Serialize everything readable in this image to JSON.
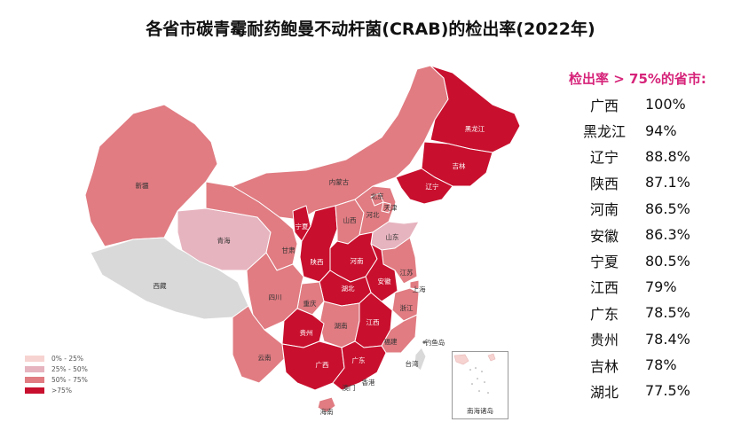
{
  "title": "各省市碳青霉耐药鲍曼不动杆菌(CRAB)的检出率(2022年)",
  "colors": {
    "c0": "#f6d3d0",
    "c1": "#e6b4bf",
    "c2": "#e07c82",
    "c3": "#c8102e",
    "grey": "#d9d9d9",
    "accent": "#d6247a"
  },
  "legend": [
    {
      "label": "0% - 25%",
      "color": "#f6d3d0"
    },
    {
      "label": "25% - 50%",
      "color": "#e6b4bf"
    },
    {
      "label": "50% - 75%",
      "color": "#e07c82"
    },
    {
      "label": ">75%",
      "color": "#c8102e"
    }
  ],
  "map_labels": {
    "heilongjiang": "黑龙江",
    "jilin": "吉林",
    "liaoning": "辽宁",
    "neimenggu": "内蒙古",
    "xinjiang": "新疆",
    "xizang": "西藏",
    "qinghai": "青海",
    "gansu": "甘肃",
    "ningxia": "宁夏",
    "shaanxi": "陕西",
    "shanxi": "山西",
    "hebei": "河北",
    "beijing": "北京",
    "tianjin": "天津",
    "shandong": "山东",
    "henan": "河南",
    "jiangsu": "江苏",
    "anhui": "安徽",
    "shanghai": "上海",
    "hubei": "湖北",
    "chongqing": "重庆",
    "sichuan": "四川",
    "zhejiang": "浙江",
    "hunan": "湖南",
    "jiangxi": "江西",
    "guizhou": "贵州",
    "fujian": "福建",
    "yunnan": "云南",
    "guangxi": "广西",
    "guangdong": "广东",
    "hongkong": "香港",
    "macau": "澳门",
    "hainan": "海南",
    "taiwan": "台湾",
    "diaoyudao": "钓鱼岛",
    "nanhai": "南海诸岛"
  },
  "side": {
    "header": "检出率 > 75%的省市:",
    "rows": [
      {
        "name": "广西",
        "value": "100%"
      },
      {
        "name": "黑龙江",
        "value": "94%"
      },
      {
        "name": "辽宁",
        "value": "88.8%"
      },
      {
        "name": "陕西",
        "value": "87.1%"
      },
      {
        "name": "河南",
        "value": "86.5%"
      },
      {
        "name": "安徽",
        "value": "86.3%"
      },
      {
        "name": "宁夏",
        "value": "80.5%"
      },
      {
        "name": "江西",
        "value": "79%"
      },
      {
        "name": "广东",
        "value": "78.5%"
      },
      {
        "name": "贵州",
        "value": "78.4%"
      },
      {
        "name": "吉林",
        "value": "78%"
      },
      {
        "name": "湖北",
        "value": "77.5%"
      }
    ]
  }
}
